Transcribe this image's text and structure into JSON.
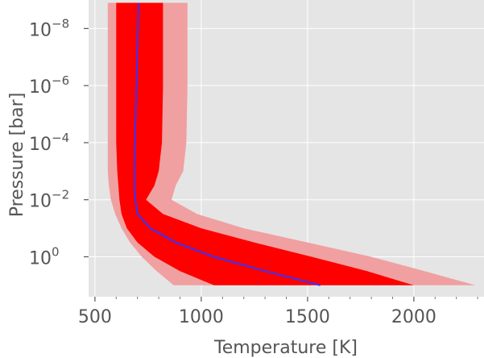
{
  "chart_data": {
    "type": "area",
    "title": "",
    "xlabel": "Temperature [K]",
    "ylabel": "Pressure [bar]",
    "xlim": [
      470,
      2330
    ],
    "ylim_log10": [
      1.4,
      -9.0
    ],
    "y_scale": "log",
    "y_inverted": true,
    "grid": true,
    "background_color": "#e5e5e5",
    "grid_color": "#ffffff",
    "x_ticks": [
      {
        "value": 500,
        "label": "500"
      },
      {
        "value": 1000,
        "label": "1000"
      },
      {
        "value": 1500,
        "label": "1500"
      },
      {
        "value": 2000,
        "label": "2000"
      }
    ],
    "y_ticks": [
      {
        "exp": -8,
        "base": "10",
        "power": "−8"
      },
      {
        "exp": -6,
        "base": "10",
        "power": "−6"
      },
      {
        "exp": -4,
        "base": "10",
        "power": "−4"
      },
      {
        "exp": -2,
        "base": "10",
        "power": "−2"
      },
      {
        "exp": 0,
        "base": "10",
        "power": "0"
      }
    ],
    "log_pressure": [
      -8.9,
      -6.0,
      -4.0,
      -3.0,
      -2.5,
      -2.0,
      -1.5,
      -1.0,
      -0.5,
      0.0,
      0.5,
      1.0
    ],
    "series": [
      {
        "role": "outer_band",
        "color": "#f0a0a0",
        "t_low": [
          560,
          560,
          560,
          560,
          565,
          575,
          595,
          625,
          665,
          720,
          790,
          870
        ],
        "t_high": [
          935,
          935,
          930,
          915,
          880,
          860,
          980,
          1200,
          1500,
          1800,
          2050,
          2290
        ]
      },
      {
        "role": "inner_band",
        "color": "#ff0000",
        "t_low": [
          600,
          600,
          600,
          605,
          610,
          615,
          625,
          650,
          700,
          780,
          900,
          1060
        ],
        "t_high": [
          820,
          820,
          815,
          800,
          780,
          740,
          820,
          1000,
          1250,
          1520,
          1780,
          2000
        ]
      },
      {
        "role": "median",
        "color": "#3333ff",
        "t": [
          705,
          695,
          688,
          685,
          685,
          690,
          700,
          760,
          880,
          1060,
          1300,
          1560
        ]
      }
    ]
  }
}
